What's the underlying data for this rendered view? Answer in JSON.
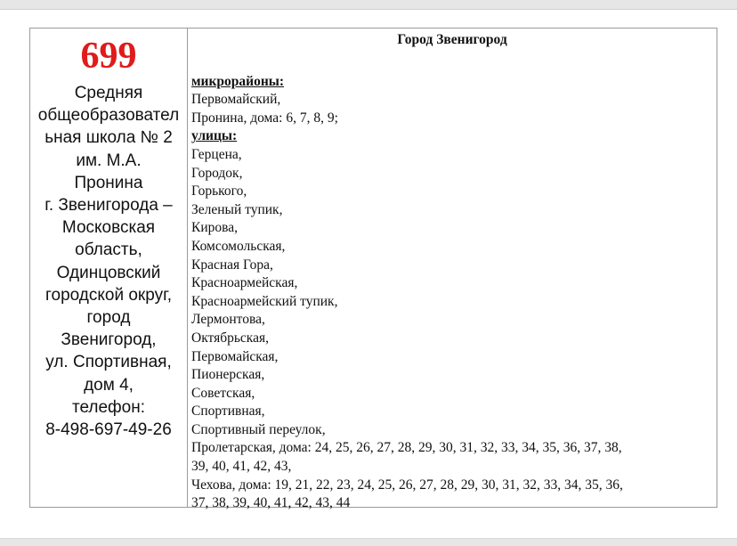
{
  "school": {
    "number": "699",
    "lines": [
      "Средняя",
      "общеобразовател",
      "ьная школа № 2",
      "им. М.А.",
      "Пронина",
      "г. Звенигорода –",
      "Московская",
      "область,",
      "Одинцовский",
      "городской округ,",
      "город",
      "Звенигород,",
      "ул. Спортивная,",
      "дом 4,",
      "телефон:",
      "8-498-697-49-26"
    ]
  },
  "district": {
    "city": "Город Звенигород",
    "microdistricts_label": "микрорайоны:",
    "microdistricts": [
      "Первомайский,",
      "Пронина, дома: 6, 7, 8, 9;"
    ],
    "streets_label": "улицы:",
    "streets": [
      "Герцена,",
      "Городок,",
      "Горького,",
      "Зеленый тупик,",
      "Кирова,",
      "Комсомольская,",
      "Красная Гора,",
      "Красноармейская,",
      "Красноармейский тупик,",
      "Лермонтова,",
      "Октябрьская,",
      "Первомайская,",
      "Пионерская,",
      "Советская,",
      "Спортивная,",
      "Спортивный переулок,",
      "Пролетарская, дома: 24, 25, 26, 27, 28, 29, 30, 31, 32, 33, 34, 35, 36, 37, 38,",
      "39, 40, 41, 42, 43,",
      "Чехова, дома: 19, 21, 22, 23, 24, 25, 26, 27, 28, 29, 30, 31, 32, 33, 34, 35, 36,",
      "37, 38, 39, 40, 41, 42, 43, 44"
    ]
  }
}
